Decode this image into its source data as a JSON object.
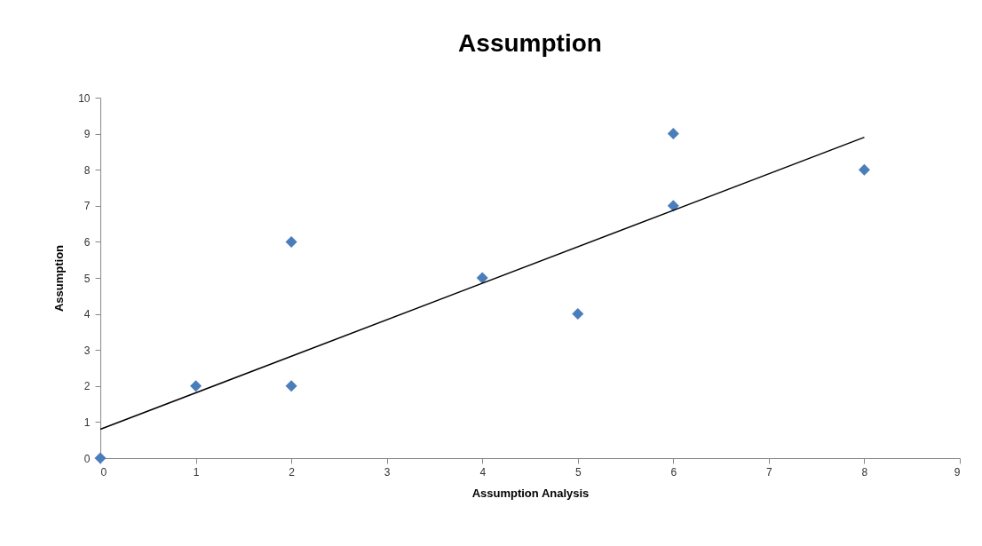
{
  "chart_data": {
    "type": "scatter",
    "title": "Assumption",
    "xlabel": "Assumption Analysis",
    "ylabel": "Assumption",
    "x": [
      0,
      1,
      2,
      2,
      4,
      5,
      6,
      6,
      8
    ],
    "series": [
      {
        "color": "#4a7ebb",
        "marker": "diamond",
        "values": [
          0,
          2,
          6,
          2,
          5,
          4,
          9,
          7,
          8
        ]
      },
      {
        "type": "line",
        "color": "#000000",
        "marker": "none",
        "x": [
          0,
          8
        ],
        "values": [
          0.8,
          8.9
        ]
      }
    ],
    "xlim": [
      0,
      9
    ],
    "xticks": [
      0,
      1,
      2,
      3,
      4,
      5,
      6,
      7,
      8,
      9
    ],
    "ylim": [
      0,
      10
    ],
    "yticks": [
      0,
      1,
      2,
      3,
      4,
      5,
      6,
      7,
      8,
      9,
      10
    ],
    "grid": false
  }
}
